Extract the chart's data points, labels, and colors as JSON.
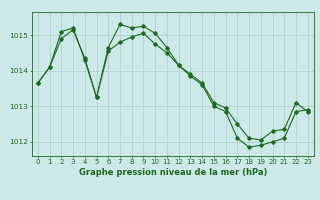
{
  "line1_x": [
    0,
    1,
    2,
    3,
    4,
    5,
    6,
    7,
    8,
    9,
    10,
    11,
    12,
    13,
    14,
    15,
    16,
    17,
    18,
    19,
    20,
    21,
    22,
    23
  ],
  "line1_y": [
    1013.65,
    1014.1,
    1015.1,
    1015.2,
    1014.3,
    1013.25,
    1014.65,
    1015.3,
    1015.2,
    1015.25,
    1015.05,
    1014.65,
    1014.15,
    1013.85,
    1013.6,
    1013.0,
    1012.85,
    1012.1,
    1011.85,
    1011.9,
    1012.0,
    1012.1,
    1012.85,
    1012.9
  ],
  "line2_x": [
    0,
    1,
    2,
    3,
    4,
    5,
    6,
    7,
    8,
    9,
    10,
    11,
    12,
    13,
    14,
    15,
    16,
    17,
    18,
    19,
    20,
    21,
    22,
    23
  ],
  "line2_y": [
    1013.65,
    1014.1,
    1014.9,
    1015.15,
    1014.35,
    1013.25,
    1014.55,
    1014.8,
    1014.95,
    1015.05,
    1014.75,
    1014.5,
    1014.15,
    1013.9,
    1013.65,
    1013.1,
    1012.95,
    1012.5,
    1012.1,
    1012.05,
    1012.3,
    1012.35,
    1013.1,
    1012.85
  ],
  "line_color": "#1a6b1a",
  "bg_color": "#cce8e8",
  "grid_color": "#aacece",
  "xlabel": "Graphe pression niveau de la mer (hPa)",
  "xlim": [
    -0.5,
    23.5
  ],
  "ylim": [
    1011.6,
    1015.65
  ],
  "yticks": [
    1012,
    1013,
    1014,
    1015
  ],
  "xticks": [
    0,
    1,
    2,
    3,
    4,
    5,
    6,
    7,
    8,
    9,
    10,
    11,
    12,
    13,
    14,
    15,
    16,
    17,
    18,
    19,
    20,
    21,
    22,
    23
  ],
  "marker": "D",
  "markersize": 1.8,
  "linewidth": 0.8,
  "tick_fontsize": 5.0,
  "xlabel_fontsize": 6.0
}
